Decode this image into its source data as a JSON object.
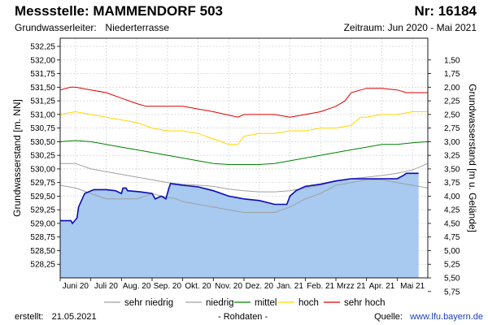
{
  "header": {
    "title": "Messstelle: MAMMENDORF 503",
    "number": "Nr: 16184",
    "aquifer_label": "Grundwasserleiter:",
    "aquifer_value": "Niederterrasse",
    "period": "Zeitraum: Jun 2020 - Mai 2021"
  },
  "footer": {
    "created_label": "erstellt:",
    "created_date": "21.05.2021",
    "raw_note": "- Rohdaten -",
    "source_label": "Quelle:",
    "source_url": "www.lfu.bayern.de"
  },
  "colors": {
    "area_fill": "#a8c9f0",
    "measured_line": "#0a0ab4",
    "sehr_niedrig": "#a0a0a0",
    "niedrig": "#a0a0a0",
    "mittel": "#008000",
    "hoch": "#ffd700",
    "sehr_hoch": "#dd0000",
    "grid": "#d0d0d0"
  },
  "chart_data": {
    "type": "area",
    "ylabel_left": "Grundwasserstand [m. NN]",
    "ylabel_right": "Grundwasserstand [m u. Gelände]",
    "ylim": [
      528.0,
      532.4
    ],
    "yticks_left": [
      "532,25",
      "532,00",
      "531,75",
      "531,50",
      "531,25",
      "531,00",
      "530,75",
      "530,50",
      "530,25",
      "530,00",
      "529,75",
      "529,50",
      "529,25",
      "529,00",
      "528,75",
      "528,50",
      "528,25"
    ],
    "yticks_left_values": [
      532.25,
      532.0,
      531.75,
      531.5,
      531.25,
      531.0,
      530.75,
      530.5,
      530.25,
      530.0,
      529.75,
      529.5,
      529.25,
      529.0,
      528.75,
      528.5,
      528.25
    ],
    "yticks_right": [
      "1,50",
      "1,75",
      "2,00",
      "2,25",
      "2,50",
      "2,75",
      "3,00",
      "3,25",
      "3,50",
      "3,75",
      "4,00",
      "4,25",
      "4,50",
      "4,75",
      "5,00",
      "5,25",
      "5,50",
      "5,75"
    ],
    "right_axis_ground_level": 533.5,
    "xlim": [
      0,
      12
    ],
    "xticks": [
      "Juni 20",
      "Juli 20",
      "Aug. 20",
      "Sep. 20",
      "Okt. 20",
      "Nov. 20",
      "Dez. 20",
      "Jan. 21",
      "Feb. 21",
      "Mrzz 21",
      "Apr. 21",
      "Mai 21"
    ],
    "grid": true,
    "legend_position": "bottom",
    "legend": [
      "sehr niedrig",
      "niedrig",
      "mittel",
      "hoch",
      "sehr hoch"
    ],
    "series": [
      {
        "name": "sehr hoch",
        "x": [
          0,
          0.35,
          0.5,
          1,
          1.5,
          2,
          2.5,
          2.8,
          3,
          4,
          5,
          5.8,
          6,
          6.5,
          7,
          7.5,
          8,
          8.5,
          9,
          9.3,
          9.5,
          10,
          10.5,
          11,
          11.3,
          11.5,
          12
        ],
        "y": [
          531.45,
          531.5,
          531.5,
          531.45,
          531.4,
          531.3,
          531.2,
          531.15,
          531.15,
          531.15,
          531.05,
          530.95,
          531.0,
          531.0,
          531.0,
          530.95,
          531.0,
          531.05,
          531.15,
          531.25,
          531.4,
          531.48,
          531.48,
          531.45,
          531.4,
          531.4,
          531.4
        ]
      },
      {
        "name": "hoch",
        "x": [
          0,
          0.5,
          1,
          1.5,
          2,
          2.5,
          3,
          3.5,
          4,
          4.5,
          5,
          5.5,
          5.8,
          6,
          6.5,
          7,
          7.5,
          8,
          8.5,
          9,
          9.5,
          9.8,
          10,
          10.5,
          11,
          11.5,
          12
        ],
        "y": [
          531.0,
          531.05,
          531.0,
          530.95,
          530.9,
          530.85,
          530.75,
          530.7,
          530.7,
          530.65,
          530.55,
          530.45,
          530.45,
          530.6,
          530.65,
          530.65,
          530.7,
          530.7,
          530.75,
          530.75,
          530.8,
          530.95,
          530.95,
          531.0,
          531.0,
          531.05,
          531.05
        ]
      },
      {
        "name": "mittel",
        "x": [
          0,
          0.5,
          1,
          1.5,
          2,
          2.5,
          3,
          3.5,
          4,
          4.5,
          5,
          5.5,
          6,
          6.5,
          7,
          7.5,
          8,
          8.5,
          9,
          9.5,
          10,
          10.5,
          11,
          11.5,
          12
        ],
        "y": [
          530.5,
          530.52,
          530.5,
          530.45,
          530.4,
          530.35,
          530.3,
          530.25,
          530.2,
          530.15,
          530.1,
          530.08,
          530.08,
          530.08,
          530.1,
          530.15,
          530.2,
          530.25,
          530.3,
          530.35,
          530.4,
          530.45,
          530.45,
          530.48,
          530.5
        ]
      },
      {
        "name": "niedrig",
        "x": [
          0,
          0.5,
          1,
          1.5,
          2,
          2.5,
          3,
          3.5,
          4,
          4.5,
          5,
          5.5,
          6,
          6.5,
          7,
          7.5,
          8,
          8.5,
          9,
          9.5,
          10,
          10.5,
          11,
          11.5,
          12
        ],
        "y": [
          530.1,
          530.1,
          530.0,
          529.95,
          529.9,
          529.85,
          529.8,
          529.75,
          529.72,
          529.7,
          529.68,
          529.63,
          529.6,
          529.58,
          529.58,
          529.6,
          529.65,
          529.7,
          529.78,
          529.82,
          529.85,
          529.88,
          529.92,
          529.98,
          530.1
        ]
      },
      {
        "name": "sehr niedrig",
        "x": [
          0,
          0.5,
          1,
          1.5,
          2,
          2.5,
          3,
          3.3,
          3.8,
          4,
          4.5,
          5,
          5.5,
          6,
          6.5,
          7,
          7.5,
          8,
          8.5,
          9,
          9.5,
          10,
          10.5,
          11,
          11.5,
          12
        ],
        "y": [
          529.7,
          529.65,
          529.55,
          529.45,
          529.45,
          529.45,
          529.55,
          529.5,
          529.45,
          529.4,
          529.35,
          529.3,
          529.25,
          529.2,
          529.2,
          529.2,
          529.3,
          529.45,
          529.55,
          529.7,
          529.75,
          529.8,
          529.8,
          529.75,
          529.7,
          529.65
        ]
      },
      {
        "name": "Messwert",
        "x": [
          0,
          0.35,
          0.4,
          0.55,
          0.6,
          0.8,
          1.1,
          1.5,
          1.8,
          2.0,
          2.05,
          2.15,
          2.2,
          2.6,
          3.0,
          3.1,
          3.3,
          3.45,
          3.55,
          3.6,
          4.0,
          4.5,
          5.0,
          5.5,
          6.0,
          6.5,
          7.0,
          7.3,
          7.4,
          7.5,
          7.7,
          8.0,
          8.5,
          9.0,
          9.5,
          10.0,
          10.5,
          11.0,
          11.2,
          11.3,
          11.5,
          11.7
        ],
        "y": [
          529.05,
          529.05,
          529.0,
          529.1,
          529.3,
          529.55,
          529.62,
          529.62,
          529.6,
          529.55,
          529.65,
          529.65,
          529.6,
          529.58,
          529.55,
          529.45,
          529.5,
          529.45,
          529.65,
          529.73,
          529.7,
          529.67,
          529.6,
          529.5,
          529.45,
          529.42,
          529.35,
          529.35,
          529.35,
          529.5,
          529.6,
          529.68,
          529.72,
          529.78,
          529.82,
          529.82,
          529.82,
          529.82,
          529.88,
          529.92,
          529.92,
          529.92
        ]
      }
    ]
  }
}
